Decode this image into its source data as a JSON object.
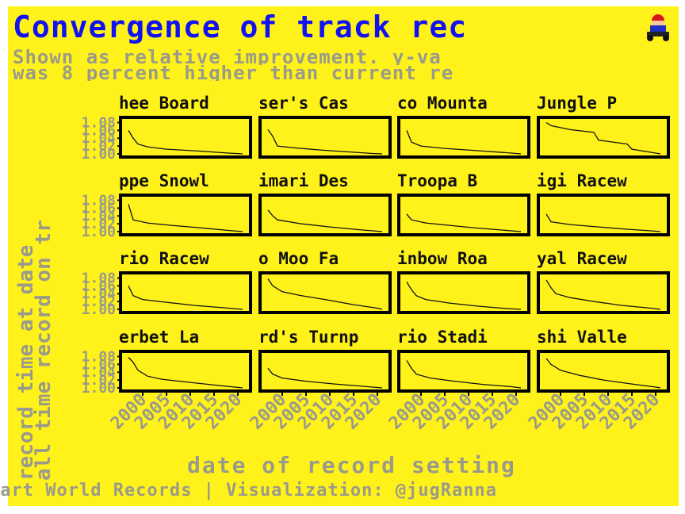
{
  "header": {
    "title": "Convergence of track rec",
    "subtitle_line1": "Shown as relative improvement. y-va",
    "subtitle_line2": "was 8 percent higher than current re"
  },
  "axes": {
    "ylabel_line1": "record time at date",
    "ylabel_line2": "all time record on tr"
  },
  "footer": {
    "xlabel": "date of record setting",
    "caption": "Kart World Records | Visualization: @jugRanna"
  },
  "colors": {
    "background": "#FFF21A",
    "title": "#1212F0",
    "muted_text": "#9A9A8A",
    "line": "#111111"
  },
  "icons": {
    "logo": "mario-kart-icon"
  },
  "chart_data": {
    "type": "line",
    "panel_titles": [
      "hee Board",
      "ser's Cas",
      "co Mounta",
      "Jungle P",
      "ppe Snowl",
      "imari Des",
      "Troopa B",
      "igi Racew",
      "rio Racew",
      "o Moo Fa",
      "inbow Roa",
      "yal Racew",
      "erbet La",
      "rd's Turnp",
      "rio Stadi",
      "shi Valle"
    ],
    "y_tick_labels": [
      "1.08",
      "1.06",
      "1.04",
      "1.02",
      "1.00"
    ],
    "y_ticks": [
      1.08,
      1.06,
      1.04,
      1.02,
      1.0
    ],
    "ylim": [
      1.0,
      1.085
    ],
    "xlim": [
      1996,
      2022
    ],
    "x_ticks": [
      2000,
      2005,
      2010,
      2015,
      2020
    ],
    "x_tick_labels": [
      "2000",
      "2005",
      "2010",
      "2015",
      "2020"
    ],
    "series": [
      {
        "x": [
          1997,
          1998,
          1999,
          2001,
          2005,
          2012,
          2018,
          2021
        ],
        "y": [
          1.06,
          1.04,
          1.025,
          1.018,
          1.012,
          1.007,
          1.002,
          1.0
        ]
      },
      {
        "x": [
          1997,
          1998,
          1999,
          2003,
          2008,
          2014,
          2019,
          2021
        ],
        "y": [
          1.062,
          1.045,
          1.02,
          1.015,
          1.01,
          1.005,
          1.001,
          1.0
        ]
      },
      {
        "x": [
          1997,
          1998,
          2000,
          2005,
          2012,
          2018,
          2021
        ],
        "y": [
          1.06,
          1.03,
          1.02,
          1.014,
          1.008,
          1.003,
          1.0
        ]
      },
      {
        "x": [
          1997,
          1998,
          2002,
          2007,
          2008,
          2014,
          2015,
          2019,
          2021
        ],
        "y": [
          1.08,
          1.072,
          1.062,
          1.055,
          1.035,
          1.025,
          1.012,
          1.004,
          1.0
        ]
      },
      {
        "x": [
          1997,
          1998,
          2001,
          2006,
          2012,
          2018,
          2021
        ],
        "y": [
          1.07,
          1.03,
          1.022,
          1.016,
          1.01,
          1.003,
          1.0
        ]
      },
      {
        "x": [
          1997,
          1998,
          1999,
          2004,
          2010,
          2016,
          2021
        ],
        "y": [
          1.055,
          1.04,
          1.03,
          1.02,
          1.012,
          1.005,
          1.0
        ]
      },
      {
        "x": [
          1997,
          1998,
          2001,
          2006,
          2011,
          2017,
          2021
        ],
        "y": [
          1.045,
          1.03,
          1.022,
          1.016,
          1.01,
          1.004,
          1.0
        ]
      },
      {
        "x": [
          1997,
          1998,
          2002,
          2008,
          2014,
          2019,
          2021
        ],
        "y": [
          1.045,
          1.025,
          1.018,
          1.012,
          1.006,
          1.002,
          1.0
        ]
      },
      {
        "x": [
          1997,
          1998,
          2000,
          2005,
          2011,
          2017,
          2021
        ],
        "y": [
          1.06,
          1.035,
          1.025,
          1.018,
          1.01,
          1.004,
          1.0
        ]
      },
      {
        "x": [
          1997,
          1998,
          2000,
          2004,
          2009,
          2015,
          2020,
          2021
        ],
        "y": [
          1.078,
          1.06,
          1.045,
          1.035,
          1.025,
          1.012,
          1.003,
          1.0
        ]
      },
      {
        "x": [
          1997,
          1998,
          1999,
          2001,
          2006,
          2012,
          2018,
          2021
        ],
        "y": [
          1.07,
          1.05,
          1.035,
          1.025,
          1.016,
          1.008,
          1.002,
          1.0
        ]
      },
      {
        "x": [
          1997,
          1998,
          1999,
          2002,
          2007,
          2013,
          2019,
          2021
        ],
        "y": [
          1.075,
          1.055,
          1.04,
          1.03,
          1.02,
          1.01,
          1.003,
          1.0
        ]
      },
      {
        "x": [
          1997,
          1998,
          1999,
          2001,
          2004,
          2010,
          2016,
          2021
        ],
        "y": [
          1.078,
          1.065,
          1.045,
          1.03,
          1.022,
          1.014,
          1.006,
          1.0
        ]
      },
      {
        "x": [
          1997,
          1998,
          2000,
          2005,
          2011,
          2017,
          2021
        ],
        "y": [
          1.05,
          1.035,
          1.025,
          1.017,
          1.01,
          1.004,
          1.0
        ]
      },
      {
        "x": [
          1997,
          1998,
          1999,
          2002,
          2007,
          2013,
          2019,
          2021
        ],
        "y": [
          1.07,
          1.05,
          1.035,
          1.025,
          1.017,
          1.009,
          1.003,
          1.0
        ]
      },
      {
        "x": [
          1997,
          1998,
          2000,
          2004,
          2009,
          2015,
          2020,
          2021
        ],
        "y": [
          1.075,
          1.06,
          1.045,
          1.032,
          1.02,
          1.01,
          1.002,
          1.0
        ]
      }
    ]
  }
}
